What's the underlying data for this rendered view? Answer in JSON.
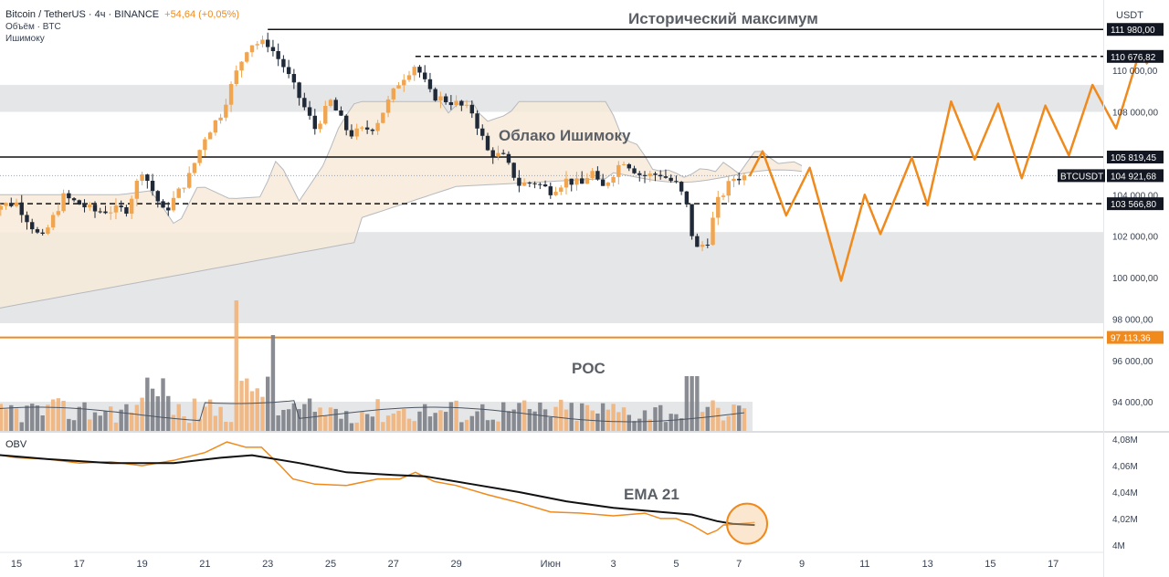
{
  "legend": {
    "symbol": "Bitcoin / TetherUS · 4ч · BINANCE",
    "change": "+54,64 (+0,05%)",
    "volume": "Объём · BTC",
    "indicator": "Ишимоку"
  },
  "annotations": {
    "ath": "Исторический максимум",
    "cloud": "Облако Ишимоку",
    "poc": "POC",
    "ema": "EMA 21"
  },
  "colors": {
    "accent": "#f08a1c",
    "up": "#f0a54e",
    "down": "#1f2937",
    "cloud": "#f7ead8",
    "cloud_bear": "#e5e7eb",
    "zone": "#dcdde0",
    "line_black": "#111111",
    "volume": "#7c7f86"
  },
  "chart_data": [
    {
      "type": "candlestick",
      "title": "Bitcoin / TetherUS · 4ч · BINANCE",
      "currency": "USDT",
      "yaxis_ticks": [
        "110 000,00",
        "108 000,00",
        "106 000,00",
        "104 000,00",
        "102 000,00",
        "100 000,00",
        "98 000,00",
        "96 000,00",
        "94 000,00"
      ],
      "ylim": [
        92600,
        113400
      ],
      "xaxis_ticks": [
        "15",
        "17",
        "19",
        "21",
        "23",
        "25",
        "27",
        "29",
        "Июн",
        "3",
        "5",
        "7",
        "9",
        "11",
        "13",
        "15",
        "17"
      ],
      "price_labels": [
        {
          "label": "111 980,00",
          "value": 111980,
          "style": "solid"
        },
        {
          "label": "110 676,82",
          "value": 110676.82,
          "style": "dashed"
        },
        {
          "label": "105 819,45",
          "value": 105819.45,
          "style": "solid"
        },
        {
          "label": "BTCUSDT",
          "value": 104921.68,
          "style": "current",
          "price": "104 921,68"
        },
        {
          "label": "103 566,80",
          "value": 103566.8,
          "style": "dashed"
        },
        {
          "label": "97 113,36",
          "value": 97113.36,
          "style": "orange"
        }
      ],
      "zones": [
        [
          108000,
          109300
        ],
        [
          97800,
          102200
        ]
      ],
      "grid": false,
      "projection": [
        [
          "2025-06-07T08:00",
          104900
        ],
        [
          "2025-06-07T18:00",
          106100
        ],
        [
          "2025-06-08T12:00",
          103000
        ],
        [
          "2025-06-09T06:00",
          105300
        ],
        [
          "2025-06-10T06:00",
          99850
        ],
        [
          "2025-06-11T00:00",
          104000
        ],
        [
          "2025-06-11T12:00",
          102100
        ],
        [
          "2025-06-12T12:00",
          105800
        ],
        [
          "2025-06-13T00:00",
          103500
        ],
        [
          "2025-06-13T18:00",
          108500
        ],
        [
          "2025-06-14T12:00",
          105700
        ],
        [
          "2025-06-15T06:00",
          108400
        ],
        [
          "2025-06-16T00:00",
          104800
        ],
        [
          "2025-06-16T18:00",
          108300
        ],
        [
          "2025-06-17T12:00",
          105900
        ],
        [
          "2025-06-18T06:00",
          109300
        ],
        [
          "2025-06-19T00:00",
          107200
        ],
        [
          "2025-06-19T18:00",
          110900
        ],
        [
          "2025-06-20T00:00",
          110300
        ]
      ]
    },
    {
      "type": "line",
      "title": "OBV",
      "yaxis_ticks": [
        "4,08M",
        "4,06M",
        "4,04M",
        "4,02M",
        "4M"
      ],
      "ylim": [
        3.995,
        4.085
      ],
      "series": [
        {
          "name": "OBV",
          "points": [
            [
              14.0,
              4.07
            ],
            [
              15.0,
              4.066
            ],
            [
              16.0,
              4.065
            ],
            [
              17.0,
              4.062
            ],
            [
              18.0,
              4.063
            ],
            [
              19.0,
              4.06
            ],
            [
              20.0,
              4.064
            ],
            [
              21.0,
              4.07
            ],
            [
              21.7,
              4.078
            ],
            [
              22.3,
              4.074
            ],
            [
              22.8,
              4.074
            ],
            [
              23.4,
              4.06
            ],
            [
              23.8,
              4.05
            ],
            [
              24.5,
              4.046
            ],
            [
              25.5,
              4.045
            ],
            [
              26.5,
              4.05
            ],
            [
              27.2,
              4.05
            ],
            [
              27.7,
              4.055
            ],
            [
              28.3,
              4.048
            ],
            [
              29.0,
              4.045
            ],
            [
              30.0,
              4.038
            ],
            [
              31.0,
              4.032
            ],
            [
              32.0,
              4.025
            ],
            [
              33.0,
              4.024
            ],
            [
              34.0,
              4.022
            ],
            [
              35.0,
              4.024
            ],
            [
              35.5,
              4.02
            ],
            [
              36.0,
              4.02
            ],
            [
              36.5,
              4.015
            ],
            [
              37.0,
              4.008
            ],
            [
              37.3,
              4.011
            ],
            [
              37.5,
              4.015
            ],
            [
              38.0,
              4.016
            ],
            [
              38.5,
              4.017
            ]
          ]
        },
        {
          "name": "EMA 21",
          "points": [
            [
              14.0,
              4.069
            ],
            [
              16.0,
              4.065
            ],
            [
              18.0,
              4.062
            ],
            [
              20.0,
              4.062
            ],
            [
              21.5,
              4.066
            ],
            [
              22.5,
              4.068
            ],
            [
              24.0,
              4.062
            ],
            [
              25.5,
              4.055
            ],
            [
              27.0,
              4.053
            ],
            [
              28.0,
              4.052
            ],
            [
              29.5,
              4.046
            ],
            [
              31.0,
              4.04
            ],
            [
              32.5,
              4.033
            ],
            [
              34.0,
              4.028
            ],
            [
              35.5,
              4.025
            ],
            [
              36.5,
              4.023
            ],
            [
              37.3,
              4.018
            ],
            [
              37.8,
              4.016
            ],
            [
              38.5,
              4.015
            ]
          ]
        }
      ]
    }
  ]
}
